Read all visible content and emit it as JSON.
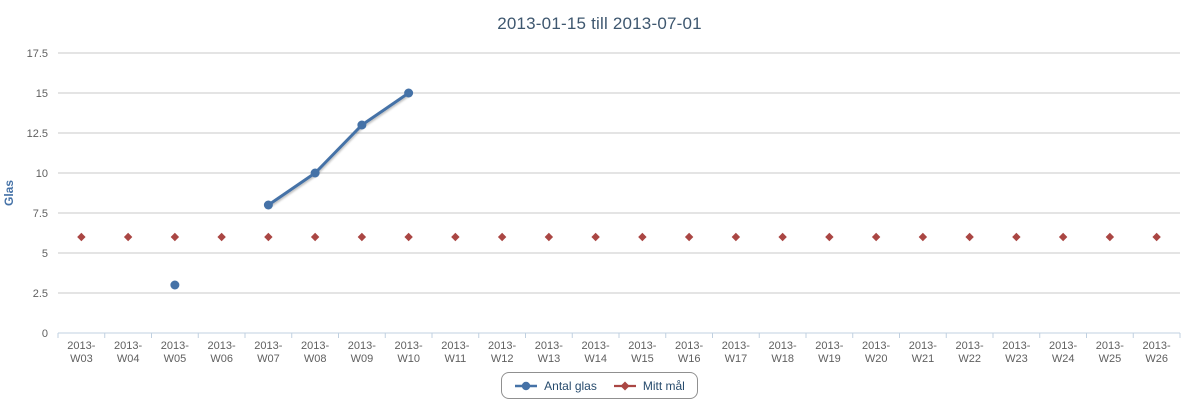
{
  "header": {
    "title": "2013-01-15 till 2013-07-01"
  },
  "colors": {
    "title_text": "#3E576F",
    "series_blue": "#4572A7",
    "series_red": "#AA4643",
    "axis_title_text": "#4572A7",
    "tick_label_text": "#606060",
    "gridline": "#C8C8C8",
    "axis_line": "#C0D0E0",
    "legend_text": "#274B6D",
    "legend_border": "#909090"
  },
  "chart_data": {
    "type": "line",
    "title": "2013-01-15 till 2013-07-01",
    "xlabel": "",
    "ylabel": "Glas",
    "ylim": [
      0,
      17.5
    ],
    "yticks": [
      0,
      2.5,
      5,
      7.5,
      10,
      12.5,
      15,
      17.5
    ],
    "grid": true,
    "legend_position": "bottom",
    "categories": [
      "2013-W03",
      "2013-W04",
      "2013-W05",
      "2013-W06",
      "2013-W07",
      "2013-W08",
      "2013-W09",
      "2013-W10",
      "2013-W11",
      "2013-W12",
      "2013-W13",
      "2013-W14",
      "2013-W15",
      "2013-W16",
      "2013-W17",
      "2013-W18",
      "2013-W19",
      "2013-W20",
      "2013-W21",
      "2013-W22",
      "2013-W23",
      "2013-W24",
      "2013-W25",
      "2013-W26"
    ],
    "series": [
      {
        "name": "Antal glas",
        "color": "#4572A7",
        "marker": "circle",
        "values": [
          null,
          null,
          3,
          null,
          8,
          10,
          13,
          15,
          null,
          null,
          null,
          null,
          null,
          null,
          null,
          null,
          null,
          null,
          null,
          null,
          null,
          null,
          null,
          null
        ]
      },
      {
        "name": "Mitt mål",
        "color": "#AA4643",
        "marker": "diamond",
        "values": [
          6,
          6,
          6,
          6,
          6,
          6,
          6,
          6,
          6,
          6,
          6,
          6,
          6,
          6,
          6,
          6,
          6,
          6,
          6,
          6,
          6,
          6,
          6,
          6
        ]
      }
    ]
  }
}
